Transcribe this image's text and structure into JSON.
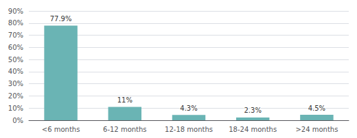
{
  "chart_data": {
    "type": "bar",
    "categories": [
      "<6 months",
      "6-12 months",
      "12-18 months",
      "18-24 months",
      ">24 months"
    ],
    "values": [
      77.9,
      11.0,
      4.3,
      2.3,
      4.5
    ],
    "value_labels": [
      "77.9%",
      "11%",
      "4.3%",
      "2.3%",
      "4.5%"
    ],
    "color": "#6ab4b4",
    "ylim": [
      0,
      90
    ],
    "yticks": [
      {
        "value": 0,
        "label": "0%"
      },
      {
        "value": 10,
        "label": "10%"
      },
      {
        "value": 20,
        "label": "20%"
      },
      {
        "value": 30,
        "label": "30%"
      },
      {
        "value": 40,
        "label": "40%"
      },
      {
        "value": 50,
        "label": "50%"
      },
      {
        "value": 60,
        "label": "60%"
      },
      {
        "value": 70,
        "label": "70%"
      },
      {
        "value": 80,
        "label": "80%"
      },
      {
        "value": 90,
        "label": "90%"
      }
    ],
    "grid": true,
    "data_labels": true
  }
}
